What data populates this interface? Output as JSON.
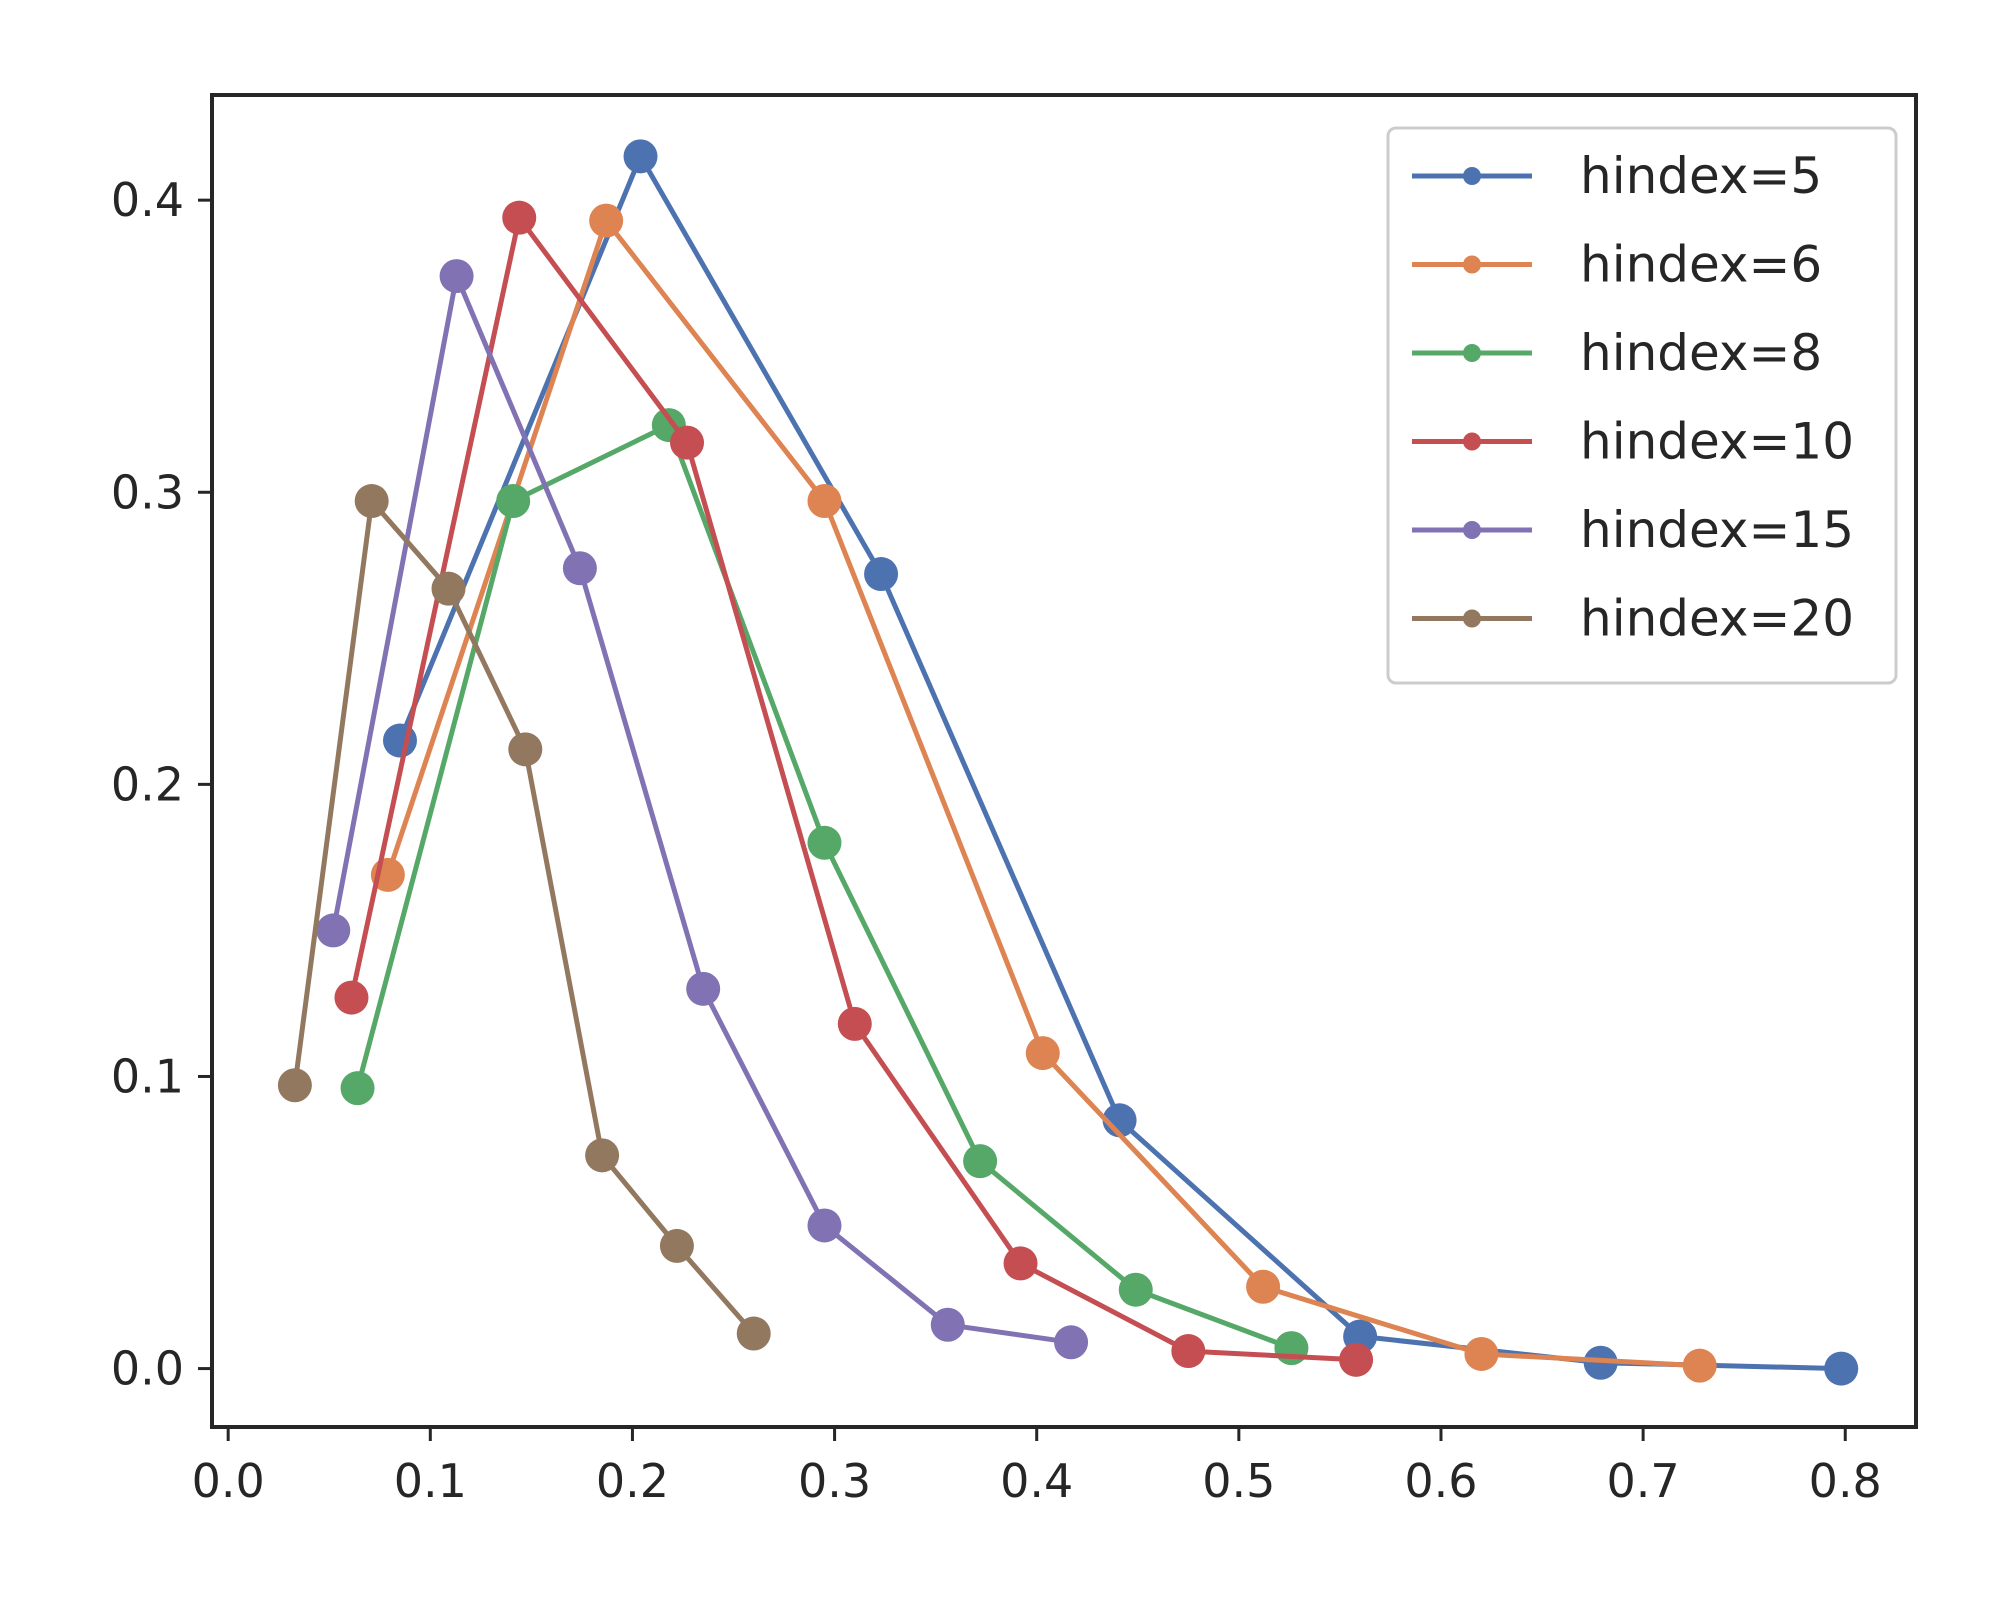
{
  "chart_data": {
    "type": "line",
    "title": "",
    "xlabel": "",
    "ylabel": "",
    "xlim": [
      -0.008,
      0.835
    ],
    "ylim": [
      -0.02,
      0.436
    ],
    "x_ticks": [
      0.0,
      0.1,
      0.2,
      0.3,
      0.4,
      0.5,
      0.6,
      0.7,
      0.8
    ],
    "x_tick_labels": [
      "0.0",
      "0.1",
      "0.2",
      "0.3",
      "0.4",
      "0.5",
      "0.6",
      "0.7",
      "0.8"
    ],
    "y_ticks": [
      0.0,
      0.1,
      0.2,
      0.3,
      0.4
    ],
    "y_tick_labels": [
      "0.0",
      "0.1",
      "0.2",
      "0.3",
      "0.4"
    ],
    "grid": false,
    "legend_position": "top-right",
    "series": [
      {
        "name": "hindex=5",
        "color": "#4c72b0",
        "x": [
          0.085,
          0.204,
          0.323,
          0.441,
          0.56,
          0.679,
          0.798
        ],
        "y": [
          0.215,
          0.415,
          0.272,
          0.085,
          0.011,
          0.002,
          0.0
        ]
      },
      {
        "name": "hindex=6",
        "color": "#dd8452",
        "x": [
          0.079,
          0.187,
          0.295,
          0.403,
          0.512,
          0.62,
          0.728
        ],
        "y": [
          0.169,
          0.393,
          0.297,
          0.108,
          0.028,
          0.005,
          0.001
        ]
      },
      {
        "name": "hindex=8",
        "color": "#55a868",
        "x": [
          0.064,
          0.141,
          0.218,
          0.295,
          0.372,
          0.449,
          0.526
        ],
        "y": [
          0.096,
          0.297,
          0.323,
          0.18,
          0.071,
          0.027,
          0.007
        ]
      },
      {
        "name": "hindex=10",
        "color": "#c44e52",
        "x": [
          0.061,
          0.144,
          0.227,
          0.31,
          0.392,
          0.475,
          0.558
        ],
        "y": [
          0.127,
          0.394,
          0.317,
          0.118,
          0.036,
          0.006,
          0.003
        ]
      },
      {
        "name": "hindex=15",
        "color": "#8172b3",
        "x": [
          0.052,
          0.113,
          0.174,
          0.235,
          0.295,
          0.356,
          0.417
        ],
        "y": [
          0.15,
          0.374,
          0.274,
          0.13,
          0.049,
          0.015,
          0.009
        ]
      },
      {
        "name": "hindex=20",
        "color": "#937860",
        "x": [
          0.033,
          0.071,
          0.109,
          0.147,
          0.185,
          0.222,
          0.26
        ],
        "y": [
          0.097,
          0.297,
          0.267,
          0.212,
          0.073,
          0.042,
          0.012
        ]
      }
    ]
  }
}
